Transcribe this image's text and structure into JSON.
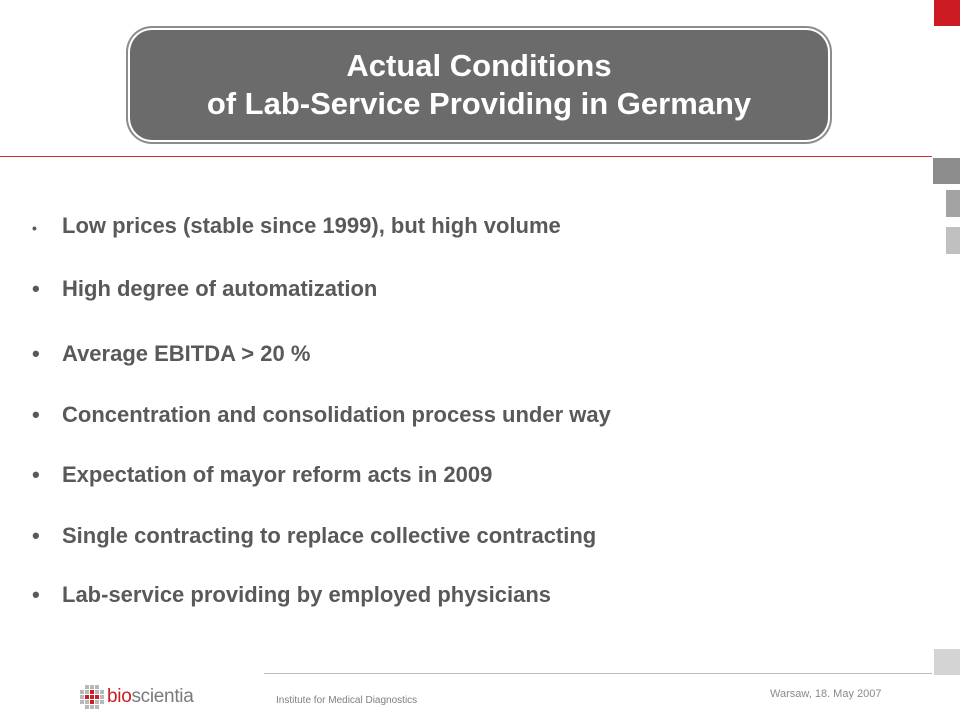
{
  "title": {
    "line1": "Actual Conditions",
    "line2": "of Lab-Service Providing in Germany"
  },
  "bullet_marker": "•",
  "bullets": [
    "Low prices (stable since 1999), but high volume",
    "High degree of automatization",
    "Average EBITDA > 20 %",
    "Concentration and consolidation process under way",
    "Expectation of mayor reform acts in 2009",
    "Single contracting to replace collective contracting",
    "Lab-service providing by employed physicians"
  ],
  "footer": {
    "logo_prefix": "bio",
    "logo_suffix": "scientia",
    "institute": "Institute for Medical Diagnostics",
    "date": "Warsaw, 18. May 2007"
  },
  "colors": {
    "accent_red": "#cc1b22",
    "title_box": "#6b6b6b",
    "body_text": "#595959"
  }
}
